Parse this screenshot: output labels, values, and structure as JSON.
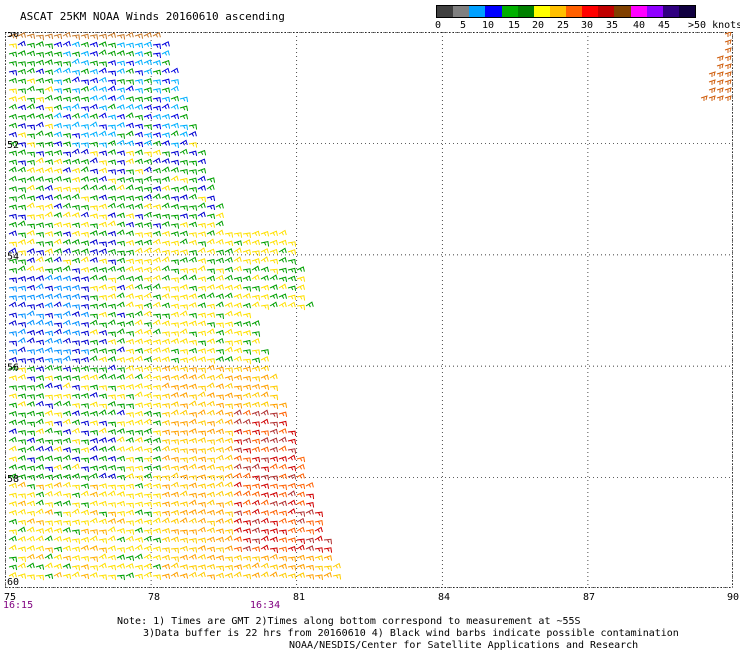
{
  "title": "ASCAT 25KM NOAA Winds 20160610 ascending",
  "legend": {
    "colors": [
      "#404040",
      "#808080",
      "#00a0ff",
      "#0000ff",
      "#00b000",
      "#008000",
      "#ffff00",
      "#ffc000",
      "#ff6000",
      "#ff0000",
      "#c00000",
      "#804000",
      "#ff00ff",
      "#9000ff",
      "#300080",
      "#100040"
    ],
    "labels": [
      "0",
      "5",
      "10",
      "15",
      "20",
      "25",
      "30",
      "35",
      "40",
      "45",
      ">50 knots"
    ]
  },
  "map": {
    "lat_labels": [
      "50",
      "52",
      "54",
      "56",
      "58",
      "60"
    ],
    "lon_labels": [
      "75",
      "78",
      "81",
      "84",
      "87",
      "90"
    ],
    "time_labels": [
      "16:15",
      "16:34"
    ],
    "time_color": "#800080"
  },
  "notes": {
    "line1": "Note: 1) Times are GMT 2)Times along bottom correspond to measurement at ~55S",
    "line2": "3)Data buffer is 22 hrs from 20160610 4) Black wind barbs indicate possible contamination",
    "line3": "NOAA/NESDIS/Center for Satellite Applications and Research"
  }
}
